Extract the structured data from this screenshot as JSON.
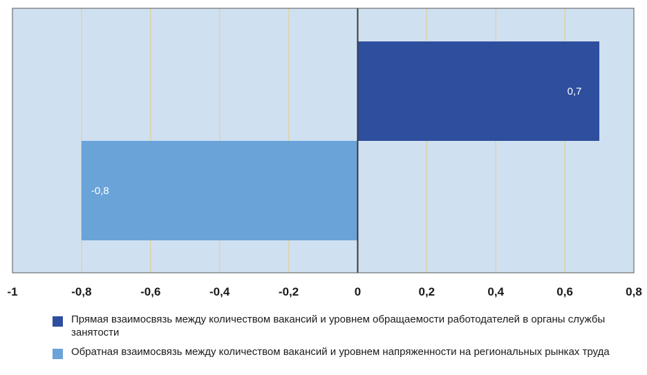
{
  "chart_data": {
    "type": "bar",
    "orientation": "horizontal",
    "series": [
      {
        "name": "Прямая взаимосвязь между количеством вакансий и уровнем обращаемости работодателей в органы службы занятости",
        "value": 0.7,
        "value_label": "0,7",
        "color": "#2e4e9e"
      },
      {
        "name": "Обратная взаимосвязь между количеством вакансий и уровнем напряженности на региональных рынках труда",
        "value": -0.8,
        "value_label": "-0,8",
        "color": "#6aa3d8"
      }
    ],
    "xlim": [
      -1,
      0.8
    ],
    "ticks": [
      {
        "value": -1,
        "label": "-1"
      },
      {
        "value": -0.8,
        "label": "-0,8"
      },
      {
        "value": -0.6,
        "label": "-0,6"
      },
      {
        "value": -0.4,
        "label": "-0,4"
      },
      {
        "value": -0.2,
        "label": "-0,2"
      },
      {
        "value": 0,
        "label": "0"
      },
      {
        "value": 0.2,
        "label": "0,2"
      },
      {
        "value": 0.4,
        "label": "0,4"
      },
      {
        "value": 0.6,
        "label": "0,6"
      },
      {
        "value": 0.8,
        "label": "0,8"
      }
    ],
    "grid": true,
    "legend_position": "bottom",
    "plot_background": "#cfe0f1",
    "grid_color": "#ddd4a8"
  }
}
